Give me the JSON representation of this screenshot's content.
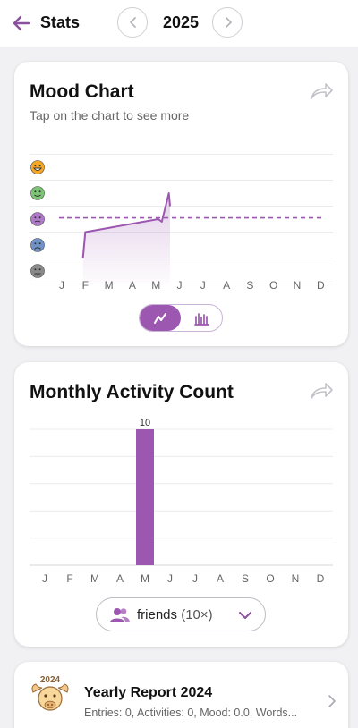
{
  "header": {
    "title": "Stats",
    "year": "2025"
  },
  "mood_card": {
    "title": "Mood Chart",
    "subtitle": "Tap on the chart to see more",
    "mood_levels": [
      "laughing",
      "happy",
      "neutral",
      "sad",
      "angry"
    ],
    "colors": {
      "accent": "#9c57b0",
      "laughing": "#f5a623",
      "happy": "#7cc576",
      "neutral": "#b07ac8",
      "sad": "#6f93c9",
      "angry": "#8a8a8a"
    }
  },
  "activity_card": {
    "title": "Monthly Activity Count",
    "filter_label": "friends",
    "filter_count": "(10×)"
  },
  "report": {
    "badge": "2024",
    "title": "Yearly Report 2024",
    "subtitle": "Entries: 0, Activities: 0, Mood: 0.0, Words..."
  },
  "chart_data": [
    {
      "type": "line",
      "categories": [
        "J",
        "F",
        "M",
        "A",
        "M",
        "J",
        "J",
        "A",
        "S",
        "O",
        "N",
        "D"
      ],
      "y_levels": 5,
      "average_line": 3.05,
      "points": [
        [
          0.9,
          1.5
        ],
        [
          1.0,
          2.5
        ],
        [
          4.1,
          3.0
        ],
        [
          4.25,
          2.9
        ],
        [
          4.55,
          4.0
        ],
        [
          4.6,
          3.5
        ]
      ]
    },
    {
      "type": "bar",
      "categories": [
        "J",
        "F",
        "M",
        "A",
        "M",
        "J",
        "J",
        "A",
        "S",
        "O",
        "N",
        "D"
      ],
      "values": [
        0,
        0,
        0,
        0,
        10,
        0,
        0,
        0,
        0,
        0,
        0,
        0
      ],
      "ylim": [
        0,
        10
      ]
    }
  ]
}
